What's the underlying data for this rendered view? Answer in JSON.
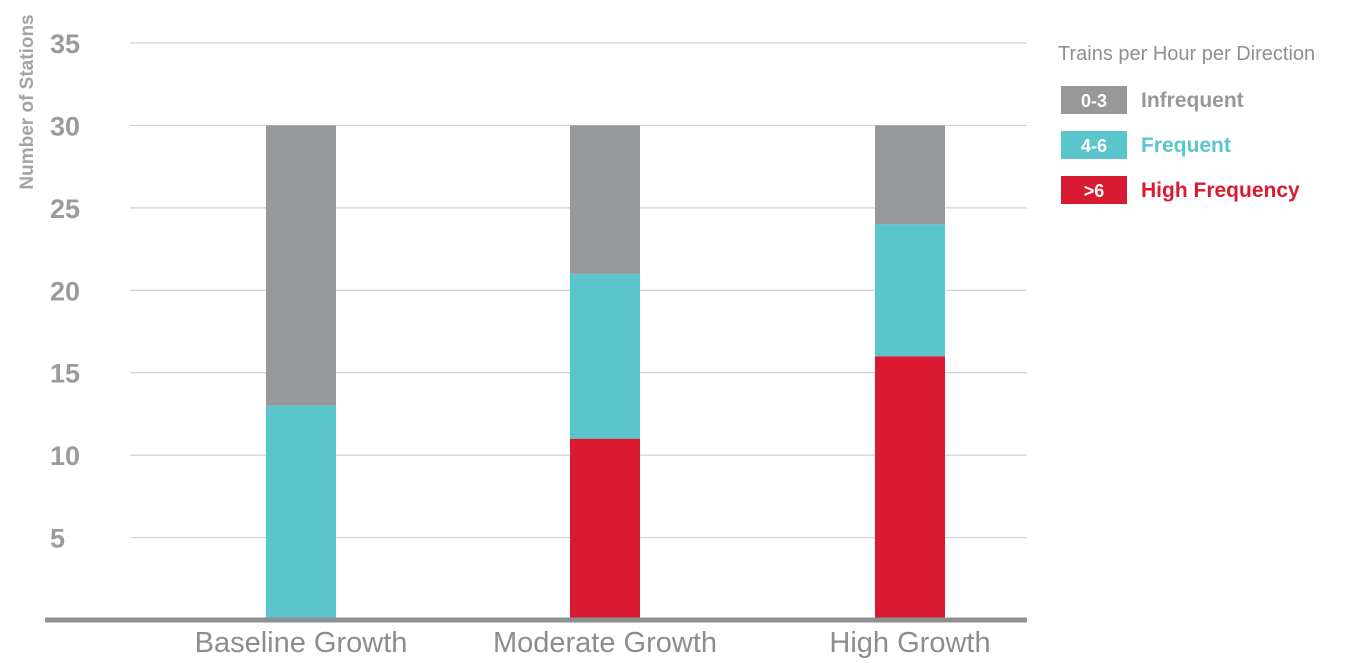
{
  "chart_data": {
    "type": "bar",
    "stacked": true,
    "categories": [
      "Baseline Growth",
      "Moderate Growth",
      "High Growth"
    ],
    "series": [
      {
        "name": "High Frequency",
        "code": ">6",
        "color": "#d91a33",
        "values": [
          0,
          11,
          16
        ]
      },
      {
        "name": "Frequent",
        "code": "4-6",
        "color": "#5ac6cc",
        "values": [
          13,
          10,
          8
        ]
      },
      {
        "name": "Infrequent",
        "code": "0-3",
        "color": "#97989a",
        "values": [
          17,
          9,
          6
        ]
      }
    ],
    "yticks": [
      "5",
      "10",
      "15",
      "20",
      "25",
      "30",
      "35"
    ],
    "ylabel": "Number of Stations",
    "ylim": [
      0,
      35
    ],
    "grid": true,
    "legend": {
      "title": "Trains per Hour per Direction",
      "placement": "top-right",
      "order": [
        "Infrequent",
        "Frequent",
        "High Frequency"
      ]
    }
  }
}
